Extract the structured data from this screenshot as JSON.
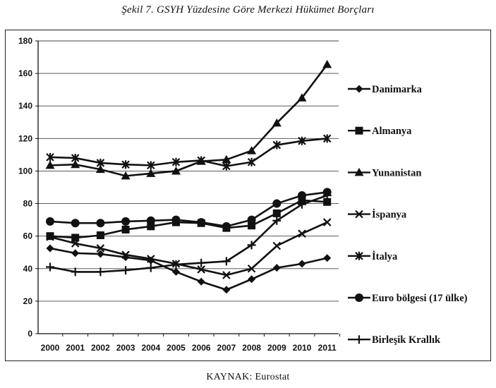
{
  "title": "Şekil 7. GSYH Yüzdesine Göre Merkezi Hükümet Borçları",
  "source": "KAYNAK: Eurostat",
  "chart_data": {
    "type": "line",
    "title": "",
    "xlabel": "",
    "ylabel": "",
    "ylim": [
      0,
      180
    ],
    "yticks": [
      0,
      20,
      40,
      60,
      80,
      100,
      120,
      140,
      160,
      180
    ],
    "grid": "horizontal",
    "legend_position": "right",
    "x": [
      "2000",
      "2001",
      "2002",
      "2003",
      "2004",
      "2005",
      "2006",
      "2007",
      "2008",
      "2009",
      "2010",
      "2011"
    ],
    "series": [
      {
        "name": "Danimarka",
        "marker": "diamond",
        "values": [
          52.5,
          49.5,
          49,
          47,
          45,
          38,
          32,
          27,
          33.5,
          40.5,
          43,
          46.5
        ]
      },
      {
        "name": "Almanya",
        "marker": "square",
        "values": [
          60,
          59,
          60.5,
          64,
          66,
          68.5,
          68,
          65,
          66.5,
          74,
          82,
          81
        ]
      },
      {
        "name": "Yunanistan",
        "marker": "triangle",
        "values": [
          103.5,
          104,
          101,
          97,
          98.5,
          100,
          106,
          107,
          112.5,
          129.5,
          145,
          165.5
        ]
      },
      {
        "name": "İspanya",
        "marker": "x",
        "values": [
          59.5,
          55.5,
          52.5,
          48.5,
          46,
          43,
          39.5,
          36,
          40,
          54,
          61.5,
          68.5
        ]
      },
      {
        "name": "İtalya",
        "marker": "asterisk",
        "values": [
          108.5,
          108,
          105,
          104,
          103.5,
          105.5,
          106.5,
          103,
          105.5,
          116,
          118.5,
          120
        ]
      },
      {
        "name": "Euro bölgesi (17 ülke)",
        "marker": "circle",
        "values": [
          69,
          68,
          68,
          69,
          69.5,
          70,
          68.5,
          66,
          70,
          80,
          85,
          87
        ]
      },
      {
        "name": "Birleşik Krallık",
        "marker": "plus",
        "values": [
          41,
          38,
          38,
          39,
          40.5,
          42.5,
          43.5,
          44.5,
          54.5,
          69.5,
          79.5,
          85
        ]
      }
    ]
  }
}
